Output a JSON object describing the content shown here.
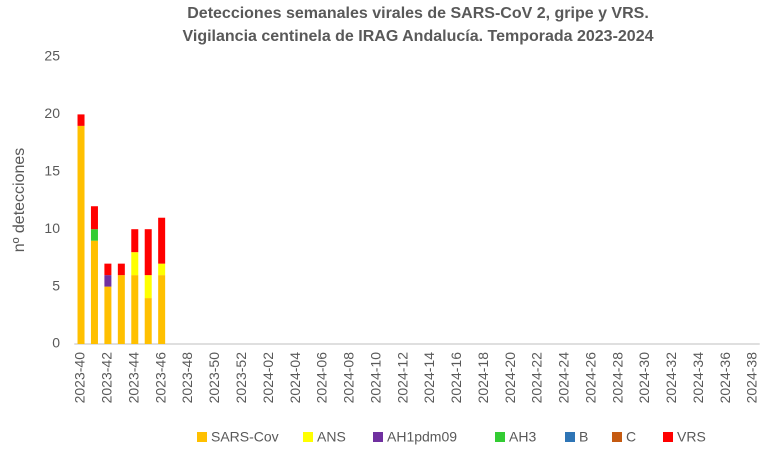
{
  "chart_data": {
    "type": "stacked_bar",
    "title": "Detecciones semanales virales de SARS-CoV 2, gripe y VRS.",
    "subtitle": "Vigilancia centinela de IRAG Andalucía. Temporada 2023-2024",
    "y_label": "nº detecciones",
    "categories": [
      "2023-40",
      null,
      "2023-42",
      null,
      "2023-44",
      null,
      "2023-46",
      null,
      "2023-48",
      null,
      "2023-50",
      null,
      "2023-52",
      null,
      "2024-02",
      null,
      "2024-04",
      null,
      "2024-06",
      null,
      "2024-08",
      null,
      "2024-10",
      null,
      "2024-12",
      null,
      "2024-14",
      null,
      "2024-16",
      null,
      "2024-18",
      null,
      "2024-20",
      null,
      "2024-22",
      null,
      "2024-24",
      null,
      "2024-26",
      null,
      "2024-28",
      null,
      "2024-30",
      null,
      "2024-32",
      null,
      "2024-34",
      null,
      "2024-36",
      null,
      "2024-38"
    ],
    "series": [
      {
        "name": "SARS-Cov",
        "color": "#ffc000",
        "values": [
          19,
          9,
          5,
          6,
          6,
          4,
          6,
          null,
          null,
          null,
          null,
          null,
          null,
          null,
          null,
          null,
          null,
          null,
          null,
          null,
          null,
          null,
          null,
          null,
          null,
          null,
          null,
          null,
          null,
          null,
          null,
          null,
          null,
          null,
          null,
          null,
          null,
          null,
          null,
          null,
          null,
          null,
          null,
          null,
          null,
          null,
          null,
          null,
          null,
          null,
          null
        ]
      },
      {
        "name": "ANS",
        "color": "#ffff00",
        "values": [
          0,
          0,
          0,
          0,
          2,
          2,
          1,
          null,
          null,
          null,
          null,
          null,
          null,
          null,
          null,
          null,
          null,
          null,
          null,
          null,
          null,
          null,
          null,
          null,
          null,
          null,
          null,
          null,
          null,
          null,
          null,
          null,
          null,
          null,
          null,
          null,
          null,
          null,
          null,
          null,
          null,
          null,
          null,
          null,
          null,
          null,
          null,
          null,
          null,
          null,
          null
        ]
      },
      {
        "name": "AH1pdm09",
        "color": "#7030a0",
        "values": [
          0,
          0,
          1,
          0,
          0,
          0,
          0,
          null,
          null,
          null,
          null,
          null,
          null,
          null,
          null,
          null,
          null,
          null,
          null,
          null,
          null,
          null,
          null,
          null,
          null,
          null,
          null,
          null,
          null,
          null,
          null,
          null,
          null,
          null,
          null,
          null,
          null,
          null,
          null,
          null,
          null,
          null,
          null,
          null,
          null,
          null,
          null,
          null,
          null,
          null,
          null
        ]
      },
      {
        "name": "AH3",
        "color": "#33cc33",
        "values": [
          0,
          1,
          0,
          0,
          0,
          0,
          0,
          null,
          null,
          null,
          null,
          null,
          null,
          null,
          null,
          null,
          null,
          null,
          null,
          null,
          null,
          null,
          null,
          null,
          null,
          null,
          null,
          null,
          null,
          null,
          null,
          null,
          null,
          null,
          null,
          null,
          null,
          null,
          null,
          null,
          null,
          null,
          null,
          null,
          null,
          null,
          null,
          null,
          null,
          null,
          null
        ]
      },
      {
        "name": "B",
        "color": "#2e75b6",
        "values": [
          0,
          0,
          0,
          0,
          0,
          0,
          0,
          null,
          null,
          null,
          null,
          null,
          null,
          null,
          null,
          null,
          null,
          null,
          null,
          null,
          null,
          null,
          null,
          null,
          null,
          null,
          null,
          null,
          null,
          null,
          null,
          null,
          null,
          null,
          null,
          null,
          null,
          null,
          null,
          null,
          null,
          null,
          null,
          null,
          null,
          null,
          null,
          null,
          null,
          null,
          null
        ]
      },
      {
        "name": "C",
        "color": "#c55a11",
        "values": [
          0,
          0,
          0,
          0,
          0,
          0,
          0,
          null,
          null,
          null,
          null,
          null,
          null,
          null,
          null,
          null,
          null,
          null,
          null,
          null,
          null,
          null,
          null,
          null,
          null,
          null,
          null,
          null,
          null,
          null,
          null,
          null,
          null,
          null,
          null,
          null,
          null,
          null,
          null,
          null,
          null,
          null,
          null,
          null,
          null,
          null,
          null,
          null,
          null,
          null,
          null
        ]
      },
      {
        "name": "VRS",
        "color": "#ff0000",
        "values": [
          1,
          2,
          1,
          1,
          2,
          4,
          4,
          null,
          null,
          null,
          null,
          null,
          null,
          null,
          null,
          null,
          null,
          null,
          null,
          null,
          null,
          null,
          null,
          null,
          null,
          null,
          null,
          null,
          null,
          null,
          null,
          null,
          null,
          null,
          null,
          null,
          null,
          null,
          null,
          null,
          null,
          null,
          null,
          null,
          null,
          null,
          null,
          null,
          null,
          null,
          null
        ]
      }
    ],
    "ylim": [
      0,
      25
    ],
    "yticks": [
      0,
      5,
      10,
      15,
      20,
      25
    ],
    "grid": false,
    "legend": "bottom"
  }
}
